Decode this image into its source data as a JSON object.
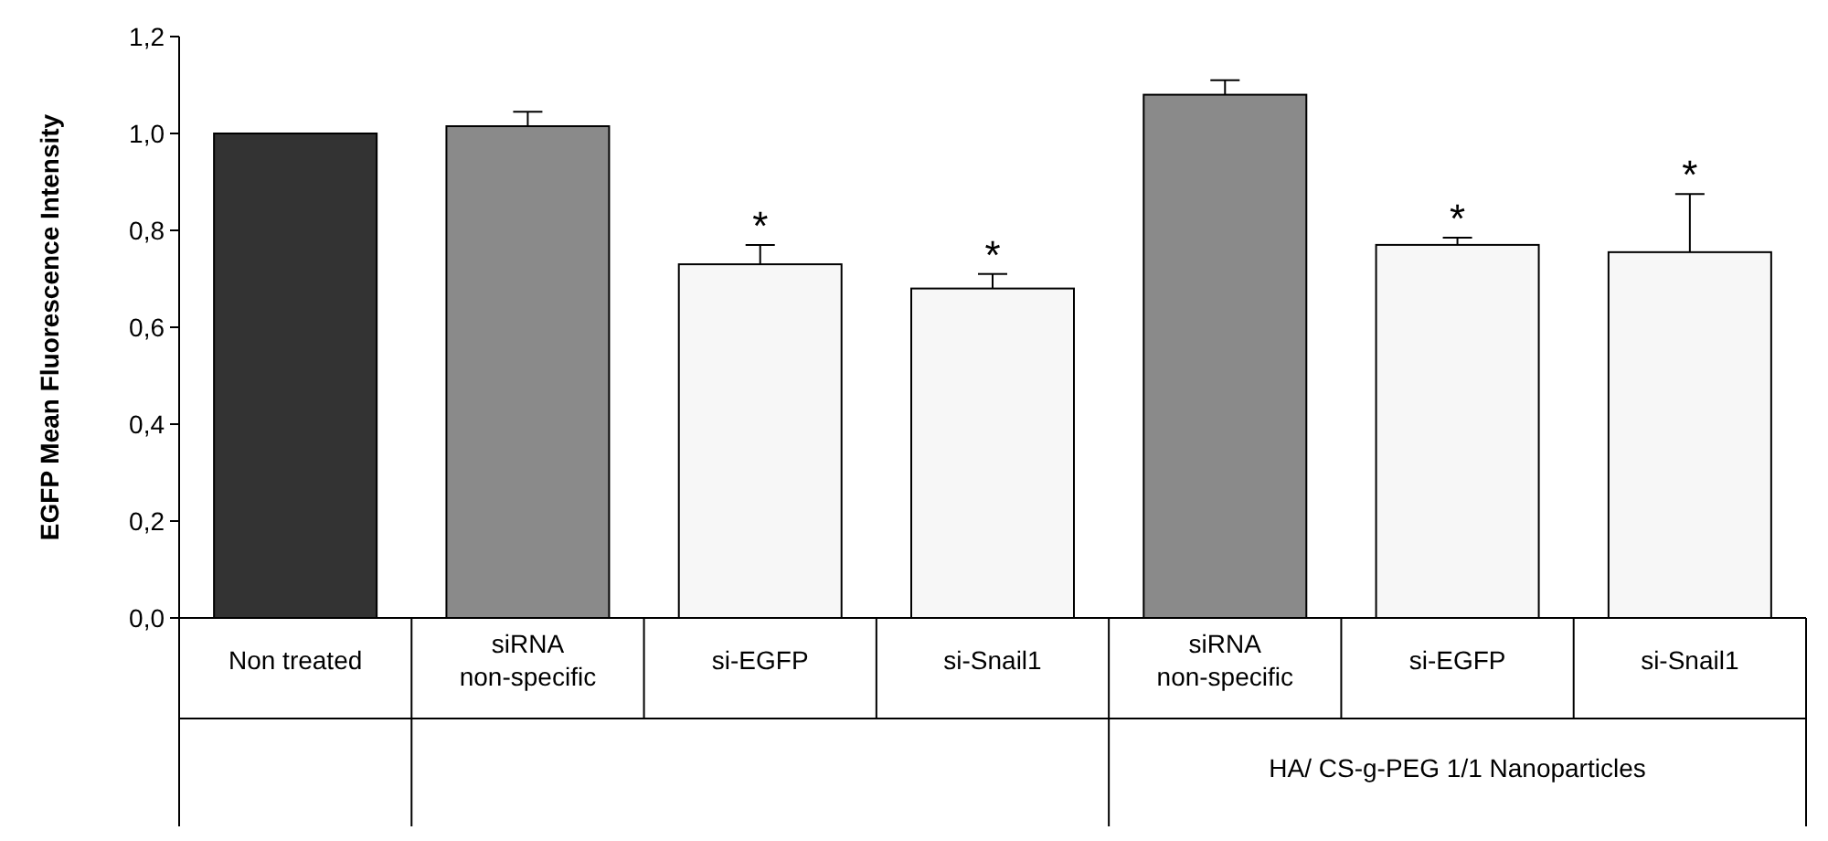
{
  "chart_data": {
    "type": "bar",
    "ylabel": "EGFP Mean Fluorescence Intensity",
    "categories": [
      "Non treated",
      "siRNA non-specific",
      "si-EGFP",
      "si-Snail1",
      "siRNA non-specific",
      "si-EGFP",
      "si-Snail1"
    ],
    "values": [
      1.0,
      1.015,
      0.73,
      0.68,
      1.08,
      0.77,
      0.755
    ],
    "errors": [
      null,
      0.03,
      0.04,
      0.03,
      0.03,
      0.015,
      0.12
    ],
    "value_labels": [
      null,
      null,
      "*",
      "*",
      null,
      "*",
      "*"
    ],
    "colors": [
      "#333333",
      "#8a8a8a",
      "#f7f7f7",
      "#f7f7f7",
      "#8a8a8a",
      "#f7f7f7",
      "#f7f7f7"
    ],
    "ylim": [
      0,
      1.2
    ],
    "yticks": [
      {
        "value": 0,
        "label": "0,0"
      },
      {
        "value": 0.2,
        "label": "0,2"
      },
      {
        "value": 0.4,
        "label": "0,4"
      },
      {
        "value": 0.6,
        "label": "0,6"
      },
      {
        "value": 0.8,
        "label": "0,8"
      },
      {
        "value": 1.0,
        "label": "1,0"
      },
      {
        "value": 1.2,
        "label": "1,2"
      }
    ],
    "annotations": [
      "HA/ CS-g-PEG 1/1 Nanoparticles"
    ]
  }
}
